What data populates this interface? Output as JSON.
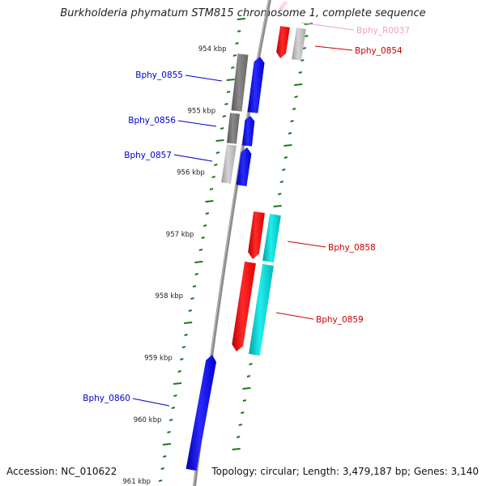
{
  "title": "Burkholderia phymatum STM815 chromosome 1, complete sequence",
  "accession": "Accession: NC_010622",
  "topology": "Topology: circular; Length: 3,479,187 bp; Genes: 3,140",
  "colors": {
    "backbone": "#8c8c8c",
    "tick": "#1a7a1a",
    "label_blue": "#0000cc",
    "label_red": "#cc0000",
    "label_pink": "#f0a0c8",
    "cds_blue": "#0000ff",
    "cds_red": "#ff0000",
    "cds_cyan": "#00cccc",
    "pseudo_gray": "#777777",
    "pseudo_lightgray": "#b0b0b0"
  },
  "scale_labels": [
    {
      "text": "954 kbp",
      "kbp": 954
    },
    {
      "text": "955 kbp",
      "kbp": 955
    },
    {
      "text": "956 kbp",
      "kbp": 956
    },
    {
      "text": "957 kbp",
      "kbp": 957
    },
    {
      "text": "958 kbp",
      "kbp": 958
    },
    {
      "text": "959 kbp",
      "kbp": 959
    },
    {
      "text": "960 kbp",
      "kbp": 960
    },
    {
      "text": "961 kbp",
      "kbp": 961
    }
  ],
  "genes": [
    {
      "label": "Bphy_R0037",
      "strand": "plus",
      "kind": "rna",
      "label_color": "label_pink"
    },
    {
      "label": "Bphy_0854",
      "strand": "plus",
      "kind": "cds",
      "label_color": "label_red"
    },
    {
      "label": "Bphy_0855",
      "strand": "minus",
      "kind": "cds",
      "label_color": "label_blue"
    },
    {
      "label": "Bphy_0856",
      "strand": "minus",
      "kind": "cds",
      "label_color": "label_blue"
    },
    {
      "label": "Bphy_0857",
      "strand": "minus",
      "kind": "cds",
      "label_color": "label_blue"
    },
    {
      "label": "Bphy_0858",
      "strand": "plus",
      "kind": "cds",
      "label_color": "label_red"
    },
    {
      "label": "Bphy_0859",
      "strand": "plus",
      "kind": "cds",
      "label_color": "label_red"
    },
    {
      "label": "Bphy_0860",
      "strand": "minus",
      "kind": "cds",
      "label_color": "label_blue"
    }
  ]
}
